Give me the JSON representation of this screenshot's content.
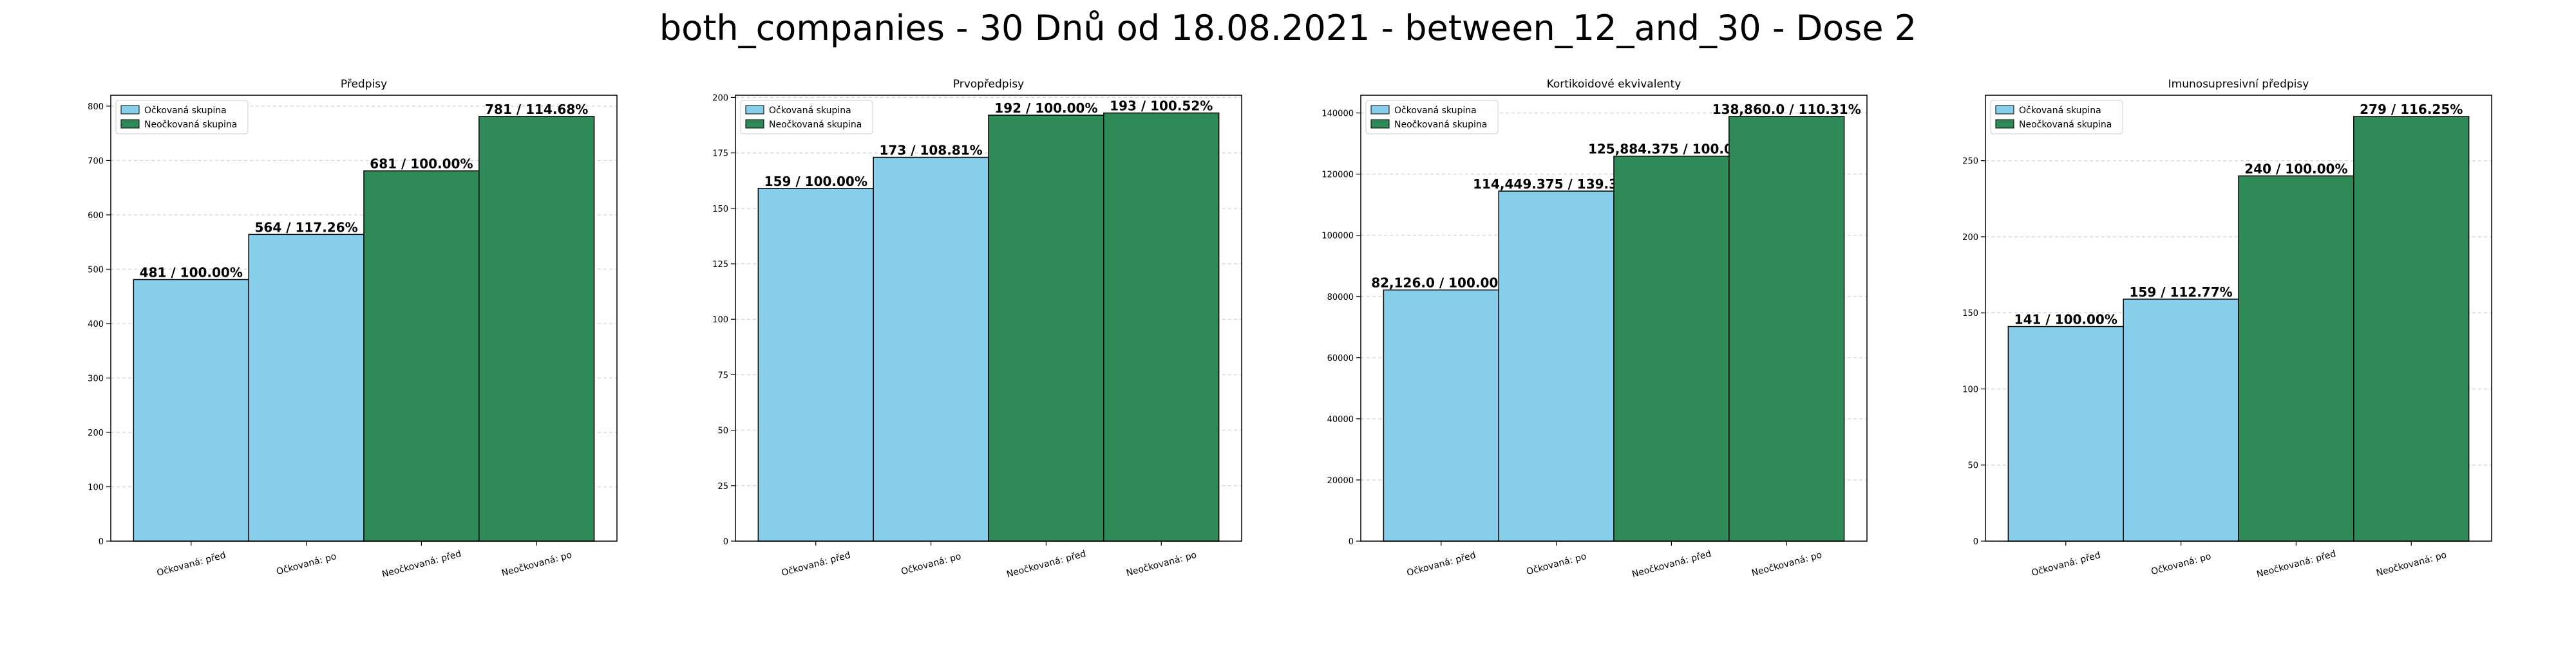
{
  "figure_title": "both_companies - 30 Dnů od 18.08.2021 - between_12_and_30 - Dose 2",
  "colors": {
    "vaccinated": "#87CEEB",
    "unvaccinated": "#2E8B57",
    "edge": "#000000",
    "grid": "#d9d9d9"
  },
  "chart_data": [
    {
      "type": "bar",
      "title": "Předpisy",
      "categories": [
        "Očkovaná: před",
        "Očkovaná: po",
        "Neočkovaná: před",
        "Neočkovaná: po"
      ],
      "values": [
        481,
        564,
        681,
        781
      ],
      "data_labels": [
        "481 / 100.00%",
        "564 / 117.26%",
        "681 / 100.00%",
        "781 / 114.68%"
      ],
      "bar_groups": [
        "vaccinated",
        "vaccinated",
        "unvaccinated",
        "unvaccinated"
      ],
      "legend": [
        "Očkovaná skupina",
        "Neočkovaná skupina"
      ],
      "legend_position": "top-left",
      "ylim": [
        0,
        820
      ],
      "yticks": [
        0,
        100,
        200,
        300,
        400,
        500,
        600,
        700,
        800
      ],
      "ytick_labels": [
        "0",
        "100",
        "200",
        "300",
        "400",
        "500",
        "600",
        "700",
        "800"
      ],
      "grid": true
    },
    {
      "type": "bar",
      "title": "Prvopředpisy",
      "categories": [
        "Očkovaná: před",
        "Očkovaná: po",
        "Neočkovaná: před",
        "Neočkovaná: po"
      ],
      "values": [
        159,
        173,
        192,
        193
      ],
      "data_labels": [
        "159 / 100.00%",
        "173 / 108.81%",
        "192 / 100.00%",
        "193 / 100.52%"
      ],
      "bar_groups": [
        "vaccinated",
        "vaccinated",
        "unvaccinated",
        "unvaccinated"
      ],
      "legend": [
        "Očkovaná skupina",
        "Neočkovaná skupina"
      ],
      "legend_position": "top-left",
      "ylim": [
        0,
        201
      ],
      "yticks": [
        0,
        25,
        50,
        75,
        100,
        125,
        150,
        175,
        200
      ],
      "ytick_labels": [
        "0",
        "25",
        "50",
        "75",
        "100",
        "125",
        "150",
        "175",
        "200"
      ],
      "grid": true
    },
    {
      "type": "bar",
      "title": "Kortikoidové ekvivalenty",
      "categories": [
        "Očkovaná: před",
        "Očkovaná: po",
        "Neočkovaná: před",
        "Neočkovaná: po"
      ],
      "values": [
        82126.0,
        114449.375,
        125884.375,
        138860.0
      ],
      "data_labels": [
        "82,126.0 / 100.00%",
        "114,449.375 / 139.36%",
        "125,884.375 / 100.00%",
        "138,860.0 / 110.31%"
      ],
      "bar_groups": [
        "vaccinated",
        "vaccinated",
        "unvaccinated",
        "unvaccinated"
      ],
      "legend": [
        "Očkovaná skupina",
        "Neočkovaná skupina"
      ],
      "legend_position": "top-left",
      "ylim": [
        0,
        145800
      ],
      "yticks": [
        0,
        20000,
        40000,
        60000,
        80000,
        100000,
        120000,
        140000
      ],
      "ytick_labels": [
        "0",
        "20000",
        "40000",
        "60000",
        "80000",
        "100000",
        "120000",
        "140000"
      ],
      "grid": true
    },
    {
      "type": "bar",
      "title": "Imunosupresivní předpisy",
      "categories": [
        "Očkovaná: před",
        "Očkovaná: po",
        "Neočkovaná: před",
        "Neočkovaná: po"
      ],
      "values": [
        141,
        159,
        240,
        279
      ],
      "data_labels": [
        "141 / 100.00%",
        "159 / 112.77%",
        "240 / 100.00%",
        "279 / 116.25%"
      ],
      "bar_groups": [
        "vaccinated",
        "vaccinated",
        "unvaccinated",
        "unvaccinated"
      ],
      "legend": [
        "Očkovaná skupina",
        "Neočkovaná skupina"
      ],
      "legend_position": "top-left",
      "ylim": [
        0,
        293
      ],
      "yticks": [
        0,
        50,
        100,
        150,
        200,
        250
      ],
      "ytick_labels": [
        "0",
        "50",
        "100",
        "150",
        "200",
        "250"
      ],
      "grid": true
    }
  ]
}
